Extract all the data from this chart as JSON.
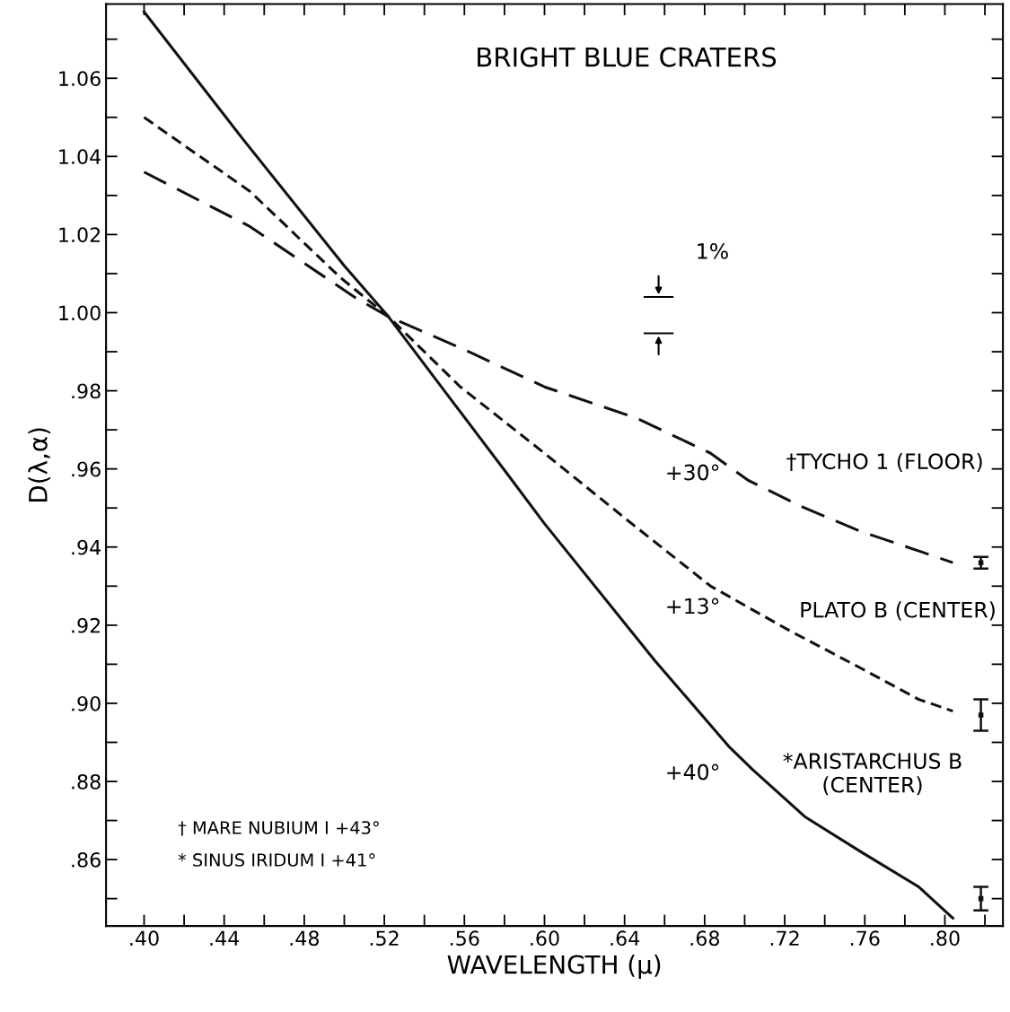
{
  "chart_data": {
    "type": "line",
    "title": "BRIGHT BLUE CRATERS",
    "xlabel": "WAVELENGTH (μ)",
    "ylabel": "D(λ,α)",
    "xlim": [
      0.381,
      0.829
    ],
    "ylim": [
      0.843,
      1.079
    ],
    "xticks": [
      {
        "value": 0.4,
        "label": ".40"
      },
      {
        "value": 0.42,
        "label": null
      },
      {
        "value": 0.44,
        "label": ".44"
      },
      {
        "value": 0.46,
        "label": null
      },
      {
        "value": 0.48,
        "label": ".48"
      },
      {
        "value": 0.5,
        "label": null
      },
      {
        "value": 0.52,
        "label": ".52"
      },
      {
        "value": 0.54,
        "label": null
      },
      {
        "value": 0.56,
        "label": ".56"
      },
      {
        "value": 0.58,
        "label": null
      },
      {
        "value": 0.6,
        "label": ".60"
      },
      {
        "value": 0.62,
        "label": null
      },
      {
        "value": 0.64,
        "label": ".64"
      },
      {
        "value": 0.66,
        "label": null
      },
      {
        "value": 0.68,
        "label": ".68"
      },
      {
        "value": 0.7,
        "label": null
      },
      {
        "value": 0.72,
        "label": ".72"
      },
      {
        "value": 0.74,
        "label": null
      },
      {
        "value": 0.76,
        "label": ".76"
      },
      {
        "value": 0.78,
        "label": null
      },
      {
        "value": 0.8,
        "label": ".80"
      },
      {
        "value": 0.82,
        "label": null
      }
    ],
    "yticks": [
      {
        "value": 0.85,
        "label": null
      },
      {
        "value": 0.86,
        "label": ".86"
      },
      {
        "value": 0.87,
        "label": null
      },
      {
        "value": 0.88,
        "label": ".88"
      },
      {
        "value": 0.89,
        "label": null
      },
      {
        "value": 0.9,
        "label": ".90"
      },
      {
        "value": 0.91,
        "label": null
      },
      {
        "value": 0.92,
        "label": ".92"
      },
      {
        "value": 0.93,
        "label": null
      },
      {
        "value": 0.94,
        "label": ".94"
      },
      {
        "value": 0.95,
        "label": null
      },
      {
        "value": 0.96,
        "label": ".96"
      },
      {
        "value": 0.97,
        "label": null
      },
      {
        "value": 0.98,
        "label": ".98"
      },
      {
        "value": 0.99,
        "label": null
      },
      {
        "value": 1.0,
        "label": "1.00"
      },
      {
        "value": 1.01,
        "label": null
      },
      {
        "value": 1.02,
        "label": "1.02"
      },
      {
        "value": 1.03,
        "label": null
      },
      {
        "value": 1.04,
        "label": "1.04"
      },
      {
        "value": 1.05,
        "label": null
      },
      {
        "value": 1.06,
        "label": "1.06"
      },
      {
        "value": 1.07,
        "label": null
      }
    ],
    "grid": false,
    "legend": false,
    "marker": "none",
    "series": [
      {
        "name": "†TYCHO 1 (FLOOR)",
        "color": "#111111",
        "line_style": "dashed",
        "x": [
          0.4,
          0.453,
          0.505,
          0.522,
          0.558,
          0.6,
          0.646,
          0.683,
          0.702,
          0.73,
          0.758,
          0.787,
          0.804
        ],
        "values": [
          1.036,
          1.022,
          1.004,
          0.999,
          0.991,
          0.981,
          0.973,
          0.964,
          0.957,
          0.95,
          0.944,
          0.939,
          0.936
        ]
      },
      {
        "name": "PLATO B (CENTER)",
        "color": "#111111",
        "line_style": "dashed",
        "x": [
          0.4,
          0.453,
          0.498,
          0.522,
          0.558,
          0.6,
          0.646,
          0.683,
          0.721,
          0.758,
          0.787,
          0.804
        ],
        "values": [
          1.05,
          1.031,
          1.009,
          0.999,
          0.981,
          0.964,
          0.945,
          0.93,
          0.919,
          0.909,
          0.901,
          0.898
        ]
      },
      {
        "name": "*ARISTARCHUS B\n(CENTER)",
        "color": "#111111",
        "line_style": "solid",
        "x": [
          0.4,
          0.45,
          0.5,
          0.522,
          0.55,
          0.581,
          0.6,
          0.655,
          0.692,
          0.704,
          0.73,
          0.758,
          0.787,
          0.804
        ],
        "values": [
          1.077,
          1.044,
          1.012,
          0.999,
          0.98,
          0.959,
          0.946,
          0.911,
          0.889,
          0.883,
          0.871,
          0.862,
          0.853,
          0.845
        ]
      },
      {
        "type": "scatter",
        "color": "#111111",
        "marker": "square",
        "x": [
          0.818,
          0.818,
          0.818
        ],
        "values": [
          0.936,
          0.897,
          0.85
        ],
        "errors": [
          0.0015,
          0.004,
          0.003
        ]
      }
    ],
    "annotations": [
      "+30°",
      "+13°",
      "+40°",
      "1%",
      "† MARE NUBIUM I +43°",
      "* SINUS IRIDUM I +41°"
    ]
  }
}
